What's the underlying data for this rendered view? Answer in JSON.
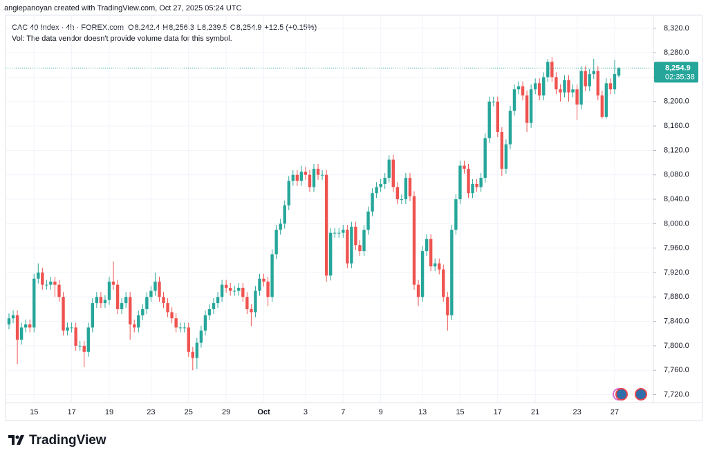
{
  "header": {
    "credit": "angiepanoyan created with TradingView.com, Oct 27, 2025 05:24 UTC",
    "logo": "TradingView"
  },
  "chart_data": {
    "type": "candlestick",
    "title": "CAC 40 Index · 4h · FOREX.com",
    "ohlc_legend": [
      {
        "key": "O",
        "text": "8,242.4"
      },
      {
        "key": "H",
        "text": "8,256.3"
      },
      {
        "key": "L",
        "text": "8,239.5"
      },
      {
        "key": "C",
        "text": "8,254.9"
      }
    ],
    "change": "+12.5 (+0.15%)",
    "volume_note": "Vol: The data vendor doesn't provide volume data for this symbol.",
    "up_color": "#26a69a",
    "down_color": "#ef5350",
    "ylim": [
      7707,
      8338
    ],
    "yticks": [
      {
        "value": 7720,
        "label": "7,720.0"
      },
      {
        "value": 7760,
        "label": "7,760.0"
      },
      {
        "value": 7800,
        "label": "7,800.0"
      },
      {
        "value": 7840,
        "label": "7,840.0"
      },
      {
        "value": 7880,
        "label": "7,880.0"
      },
      {
        "value": 7920,
        "label": "7,920.0"
      },
      {
        "value": 7960,
        "label": "7,960.0"
      },
      {
        "value": 8000,
        "label": "8,000.0"
      },
      {
        "value": 8040,
        "label": "8,040.0"
      },
      {
        "value": 8080,
        "label": "8,080.0"
      },
      {
        "value": 8120,
        "label": "8,120.0"
      },
      {
        "value": 8160,
        "label": "8,160.0"
      },
      {
        "value": 8200,
        "label": "8,200.0"
      },
      {
        "value": 8240,
        "label": "8,240.0"
      },
      {
        "value": 8280,
        "label": "8,280.0"
      },
      {
        "value": 8320,
        "label": "8,320.0"
      }
    ],
    "grid": true,
    "last_price": {
      "value": 8254.9,
      "label": "8,254.9"
    },
    "countdown": "02:35:38",
    "categories": [
      null,
      null,
      null,
      null,
      null,
      null,
      "15",
      null,
      null,
      null,
      null,
      null,
      null,
      null,
      null,
      "17",
      null,
      null,
      null,
      null,
      null,
      null,
      null,
      null,
      "19",
      null,
      null,
      null,
      null,
      null,
      null,
      null,
      null,
      null,
      "23",
      null,
      null,
      null,
      null,
      null,
      null,
      null,
      null,
      "25",
      null,
      null,
      null,
      null,
      null,
      null,
      null,
      null,
      "29",
      null,
      null,
      null,
      null,
      null,
      null,
      null,
      null,
      "Oct",
      null,
      null,
      null,
      null,
      null,
      null,
      null,
      null,
      null,
      "3",
      null,
      null,
      null,
      null,
      null,
      null,
      null,
      null,
      "7",
      null,
      null,
      null,
      null,
      null,
      null,
      null,
      null,
      "9",
      null,
      null,
      null,
      null,
      null,
      null,
      null,
      null,
      null,
      "13",
      null,
      null,
      null,
      null,
      null,
      null,
      null,
      null,
      "15",
      null,
      null,
      null,
      null,
      null,
      null,
      null,
      null,
      "17",
      null,
      null,
      null,
      null,
      null,
      null,
      null,
      null,
      "21",
      null,
      null,
      null,
      null,
      null,
      null,
      null,
      null,
      null,
      "23",
      null,
      null,
      null,
      null,
      null,
      null,
      null,
      null,
      "27",
      null
    ],
    "open": [
      7835,
      7845,
      7850,
      7810,
      7830,
      7835,
      7830,
      7910,
      7920,
      7900,
      7900,
      7905,
      7900,
      7880,
      7825,
      7830,
      7830,
      7800,
      7800,
      7790,
      7830,
      7870,
      7880,
      7870,
      7875,
      7905,
      7900,
      7860,
      7870,
      7880,
      7835,
      7830,
      7850,
      7860,
      7880,
      7890,
      7905,
      7880,
      7870,
      7855,
      7845,
      7830,
      7830,
      7830,
      7790,
      7780,
      7805,
      7825,
      7850,
      7860,
      7870,
      7880,
      7900,
      7895,
      7890,
      7890,
      7895,
      7880,
      7860,
      7855,
      7890,
      7910,
      7905,
      7880,
      7950,
      7990,
      8000,
      8030,
      8070,
      8080,
      8070,
      8085,
      8080,
      8060,
      8090,
      8080,
      8080,
      7915,
      7985,
      7985,
      7985,
      7990,
      7935,
      7995,
      7965,
      7955,
      7990,
      8020,
      8050,
      8060,
      8065,
      8075,
      8105,
      8060,
      8040,
      8040,
      8075,
      8045,
      7900,
      7880,
      7955,
      7975,
      7930,
      7935,
      7925,
      7880,
      7850,
      7990,
      8040,
      8095,
      8090,
      8050,
      8065,
      8060,
      8075,
      8140,
      8200,
      8200,
      8150,
      8090,
      8130,
      8185,
      8220,
      8225,
      8210,
      8165,
      8220,
      8230,
      8210,
      8240,
      8265,
      8240,
      8220,
      8215,
      8235,
      8215,
      8220,
      8195,
      8250,
      8225,
      8245,
      8250,
      8210,
      8175,
      8230,
      8220,
      8242.4
    ],
    "high": [
      7853,
      7858,
      7858,
      7838,
      7843,
      7843,
      7918,
      7935,
      7928,
      7908,
      7913,
      7913,
      7908,
      7888,
      7838,
      7838,
      7838,
      7808,
      7808,
      7838,
      7878,
      7888,
      7888,
      7883,
      7913,
      7938,
      7908,
      7878,
      7888,
      7888,
      7843,
      7858,
      7868,
      7888,
      7898,
      7920,
      7913,
      7888,
      7878,
      7863,
      7853,
      7838,
      7838,
      7838,
      7798,
      7813,
      7833,
      7858,
      7868,
      7878,
      7888,
      7908,
      7908,
      7903,
      7898,
      7903,
      7903,
      7888,
      7868,
      7898,
      7918,
      7918,
      7913,
      7958,
      7998,
      8008,
      8038,
      8078,
      8088,
      8088,
      8095,
      8093,
      8088,
      8098,
      8098,
      8088,
      8088,
      7993,
      7993,
      7993,
      7998,
      7998,
      8003,
      8003,
      7973,
      7998,
      8028,
      8058,
      8068,
      8073,
      8083,
      8112,
      8113,
      8068,
      8048,
      8083,
      8083,
      8053,
      7908,
      7963,
      7983,
      7983,
      7943,
      7943,
      7933,
      7888,
      7998,
      8048,
      8103,
      8103,
      8098,
      8073,
      8073,
      8083,
      8148,
      8208,
      8208,
      8208,
      8158,
      8138,
      8193,
      8228,
      8233,
      8233,
      8218,
      8228,
      8238,
      8238,
      8248,
      8270,
      8273,
      8248,
      8228,
      8243,
      8243,
      8228,
      8228,
      8258,
      8258,
      8253,
      8270,
      8258,
      8218,
      8238,
      8238,
      8268,
      8256.3
    ],
    "low": [
      7827,
      7837,
      7770,
      7802,
      7822,
      7822,
      7822,
      7902,
      7892,
      7892,
      7892,
      7880,
      7872,
      7817,
      7817,
      7822,
      7792,
      7792,
      7765,
      7782,
      7822,
      7862,
      7862,
      7862,
      7867,
      7892,
      7852,
      7852,
      7862,
      7810,
      7822,
      7822,
      7842,
      7852,
      7872,
      7882,
      7872,
      7862,
      7847,
      7837,
      7822,
      7822,
      7822,
      7782,
      7760,
      7762,
      7797,
      7817,
      7842,
      7852,
      7862,
      7872,
      7887,
      7882,
      7882,
      7882,
      7872,
      7852,
      7832,
      7847,
      7882,
      7897,
      7865,
      7872,
      7942,
      7982,
      7992,
      8022,
      8062,
      8062,
      8062,
      8072,
      8052,
      8052,
      8072,
      8072,
      7905,
      7907,
      7977,
      7977,
      7977,
      7927,
      7927,
      7957,
      7947,
      7947,
      7982,
      8012,
      8042,
      8052,
      8057,
      8067,
      8052,
      8032,
      8032,
      8032,
      8037,
      7892,
      7865,
      7872,
      7947,
      7922,
      7922,
      7917,
      7872,
      7825,
      7842,
      7982,
      8032,
      8082,
      8042,
      8042,
      8052,
      8052,
      8067,
      8132,
      8192,
      8142,
      8078,
      8082,
      8122,
      8177,
      8212,
      8202,
      8150,
      8157,
      8212,
      8202,
      8202,
      8232,
      8232,
      8212,
      8200,
      8207,
      8200,
      8207,
      8170,
      8187,
      8217,
      8217,
      8237,
      8202,
      8172,
      8172,
      8212,
      8212,
      8239.5
    ],
    "close": [
      7845,
      7850,
      7810,
      7830,
      7835,
      7830,
      7910,
      7920,
      7900,
      7900,
      7905,
      7900,
      7880,
      7825,
      7830,
      7830,
      7800,
      7800,
      7790,
      7830,
      7870,
      7880,
      7870,
      7875,
      7905,
      7900,
      7860,
      7870,
      7880,
      7835,
      7830,
      7850,
      7860,
      7880,
      7890,
      7905,
      7880,
      7870,
      7855,
      7845,
      7830,
      7830,
      7830,
      7790,
      7780,
      7805,
      7825,
      7850,
      7860,
      7870,
      7880,
      7900,
      7895,
      7890,
      7890,
      7895,
      7880,
      7860,
      7855,
      7890,
      7910,
      7905,
      7880,
      7950,
      7990,
      8000,
      8030,
      8070,
      8080,
      8070,
      8085,
      8080,
      8060,
      8090,
      8080,
      8080,
      7915,
      7985,
      7985,
      7985,
      7990,
      7935,
      7995,
      7965,
      7955,
      7990,
      8020,
      8050,
      8060,
      8065,
      8075,
      8105,
      8060,
      8040,
      8040,
      8075,
      8045,
      7900,
      7880,
      7955,
      7975,
      7930,
      7935,
      7925,
      7880,
      7850,
      7990,
      8040,
      8095,
      8090,
      8050,
      8065,
      8060,
      8075,
      8140,
      8200,
      8200,
      8150,
      8090,
      8130,
      8185,
      8220,
      8225,
      8210,
      8165,
      8220,
      8230,
      8210,
      8240,
      8265,
      8240,
      8220,
      8215,
      8235,
      8215,
      8220,
      8195,
      8250,
      8225,
      8245,
      8250,
      8210,
      8175,
      8230,
      8220,
      8245,
      8254.9
    ]
  }
}
